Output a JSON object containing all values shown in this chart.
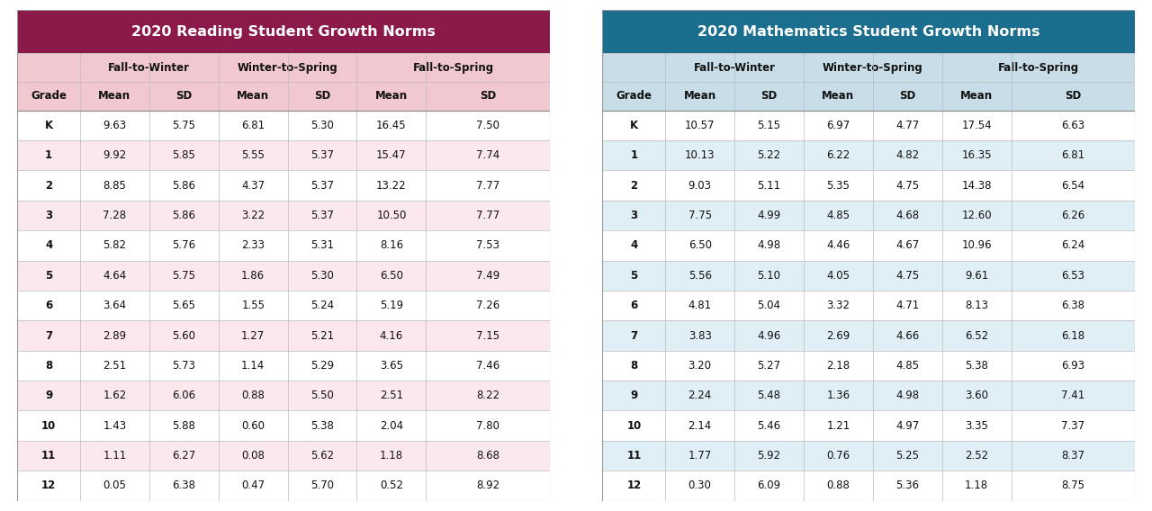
{
  "reading_title": "2020 Reading Student Growth Norms",
  "math_title": "2020 Mathematics Student Growth Norms",
  "reading_title_bg": "#8B1A4A",
  "math_title_bg": "#1B6E8E",
  "reading_header_bg": "#F2C8D0",
  "math_header_bg": "#C8DDE8",
  "reading_row_even": "#FFFFFF",
  "reading_row_odd": "#FAE8EC",
  "math_row_even": "#FFFFFF",
  "math_row_odd": "#E0EEF5",
  "grades": [
    "K",
    "1",
    "2",
    "3",
    "4",
    "5",
    "6",
    "7",
    "8",
    "9",
    "10",
    "11",
    "12"
  ],
  "reading_data": [
    [
      9.63,
      5.75,
      6.81,
      5.3,
      16.45,
      7.5
    ],
    [
      9.92,
      5.85,
      5.55,
      5.37,
      15.47,
      7.74
    ],
    [
      8.85,
      5.86,
      4.37,
      5.37,
      13.22,
      7.77
    ],
    [
      7.28,
      5.86,
      3.22,
      5.37,
      10.5,
      7.77
    ],
    [
      5.82,
      5.76,
      2.33,
      5.31,
      8.16,
      7.53
    ],
    [
      4.64,
      5.75,
      1.86,
      5.3,
      6.5,
      7.49
    ],
    [
      3.64,
      5.65,
      1.55,
      5.24,
      5.19,
      7.26
    ],
    [
      2.89,
      5.6,
      1.27,
      5.21,
      4.16,
      7.15
    ],
    [
      2.51,
      5.73,
      1.14,
      5.29,
      3.65,
      7.46
    ],
    [
      1.62,
      6.06,
      0.88,
      5.5,
      2.51,
      8.22
    ],
    [
      1.43,
      5.88,
      0.6,
      5.38,
      2.04,
      7.8
    ],
    [
      1.11,
      6.27,
      0.08,
      5.62,
      1.18,
      8.68
    ],
    [
      0.05,
      6.38,
      0.47,
      5.7,
      0.52,
      8.92
    ]
  ],
  "math_data": [
    [
      10.57,
      5.15,
      6.97,
      4.77,
      17.54,
      6.63
    ],
    [
      10.13,
      5.22,
      6.22,
      4.82,
      16.35,
      6.81
    ],
    [
      9.03,
      5.11,
      5.35,
      4.75,
      14.38,
      6.54
    ],
    [
      7.75,
      4.99,
      4.85,
      4.68,
      12.6,
      6.26
    ],
    [
      6.5,
      4.98,
      4.46,
      4.67,
      10.96,
      6.24
    ],
    [
      5.56,
      5.1,
      4.05,
      4.75,
      9.61,
      6.53
    ],
    [
      4.81,
      5.04,
      3.32,
      4.71,
      8.13,
      6.38
    ],
    [
      3.83,
      4.96,
      2.69,
      4.66,
      6.52,
      6.18
    ],
    [
      3.2,
      5.27,
      2.18,
      4.85,
      5.38,
      6.93
    ],
    [
      2.24,
      5.48,
      1.36,
      4.98,
      3.6,
      7.41
    ],
    [
      2.14,
      5.46,
      1.21,
      4.97,
      3.35,
      7.37
    ],
    [
      1.77,
      5.92,
      0.76,
      5.25,
      2.52,
      8.37
    ],
    [
      0.3,
      6.09,
      0.88,
      5.36,
      1.18,
      8.75
    ]
  ],
  "col_headers_level1": [
    "Fall-to-Winter",
    "Winter-to-Spring",
    "Fall-to-Spring"
  ],
  "col_headers_level2": [
    "Mean",
    "SD",
    "Mean",
    "SD",
    "Mean",
    "SD"
  ],
  "title_fontsize": 11.5,
  "header_fontsize": 8.5,
  "data_fontsize": 8.5
}
